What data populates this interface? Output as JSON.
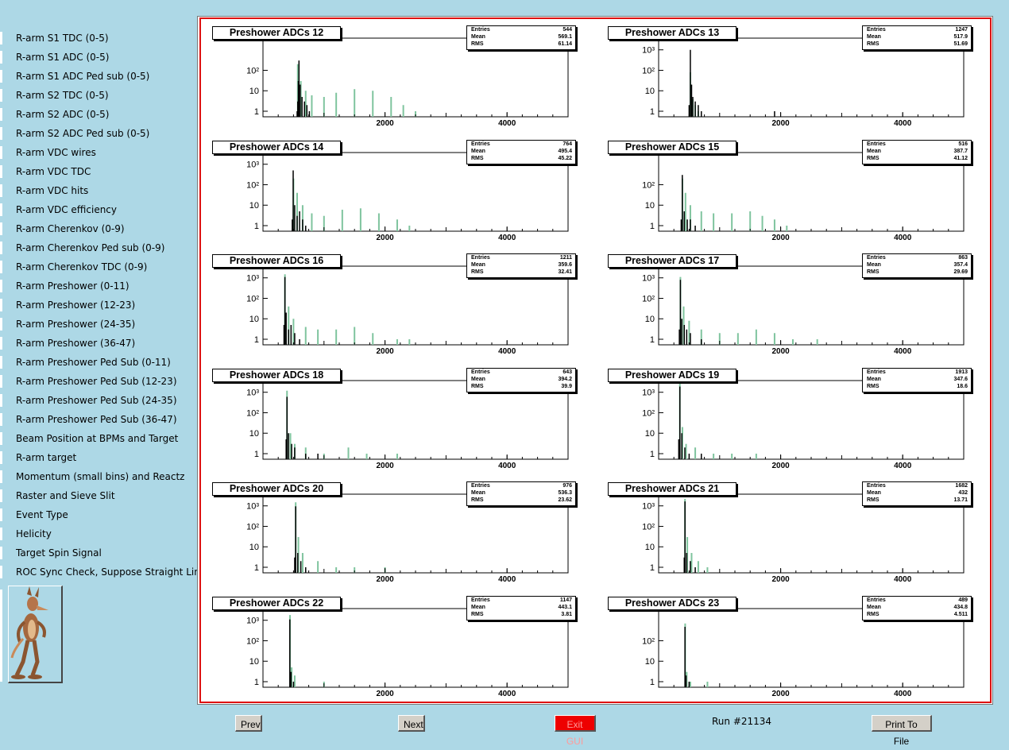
{
  "sidebar": {
    "items": [
      {
        "label": "R-arm S1 TDC (0-5)"
      },
      {
        "label": "R-arm S1 ADC (0-5)"
      },
      {
        "label": "R-arm S1 ADC Ped sub (0-5)"
      },
      {
        "label": "R-arm S2 TDC (0-5)"
      },
      {
        "label": "R-arm S2 ADC (0-5)"
      },
      {
        "label": "R-arm S2 ADC Ped sub (0-5)"
      },
      {
        "label": "R-arm VDC wires"
      },
      {
        "label": "R-arm VDC TDC"
      },
      {
        "label": "R-arm VDC hits"
      },
      {
        "label": "R-arm VDC efficiency"
      },
      {
        "label": "R-arm Cherenkov (0-9)"
      },
      {
        "label": "R-arm Cherenkov Ped sub (0-9)"
      },
      {
        "label": "R-arm Cherenkov TDC (0-9)"
      },
      {
        "label": "R-arm Preshower (0-11)"
      },
      {
        "label": "R-arm Preshower (12-23)"
      },
      {
        "label": "R-arm Preshower (24-35)"
      },
      {
        "label": "R-arm Preshower (36-47)"
      },
      {
        "label": "R-arm Preshower Ped Sub (0-11)"
      },
      {
        "label": "R-arm Preshower Ped Sub (12-23)"
      },
      {
        "label": "R-arm Preshower Ped Sub (24-35)"
      },
      {
        "label": "R-arm Preshower Ped Sub (36-47)"
      },
      {
        "label": "Beam Position at BPMs and Target"
      },
      {
        "label": "R-arm target"
      },
      {
        "label": "Momentum (small bins) and Reactz"
      },
      {
        "label": "Raster and Sieve Slit"
      },
      {
        "label": "Event Type"
      },
      {
        "label": "Helicity"
      },
      {
        "label": "Target Spin Signal"
      },
      {
        "label": "ROC Sync Check, Suppose Straight Lines"
      }
    ],
    "logo_icon": "wile-e-coyote-logo"
  },
  "stat_keys": {
    "entries": "Entries",
    "mean": "Mean",
    "rms": "RMS"
  },
  "colors": {
    "green": "#7fc49e",
    "black": "#000000",
    "frame": "#dd1111",
    "exit": "#ee0000"
  },
  "chart_data": [
    {
      "type": "bar",
      "title": "Preshower ADCs 12",
      "entries": "544",
      "mean": "569.1",
      "rms": "61.14",
      "y_scale": "log",
      "y_ticks": [
        "1",
        "10",
        "10²"
      ],
      "x_ticks": [
        "2000",
        "4000"
      ],
      "xlim": [
        0,
        5000
      ],
      "series": [
        {
          "color": "green",
          "values": [
            [
              570,
              200
            ],
            [
              620,
              30
            ],
            [
              700,
              10
            ],
            [
              800,
              6
            ],
            [
              1000,
              5
            ],
            [
              1200,
              8
            ],
            [
              1500,
              12
            ],
            [
              1800,
              10
            ],
            [
              2100,
              5
            ],
            [
              2300,
              2
            ],
            [
              2500,
              1
            ]
          ]
        },
        {
          "color": "black",
          "values": [
            [
              560,
              1
            ],
            [
              570,
              3
            ],
            [
              580,
              30
            ],
            [
              590,
              300
            ],
            [
              610,
              20
            ],
            [
              640,
              5
            ],
            [
              680,
              3
            ],
            [
              720,
              2
            ],
            [
              760,
              1
            ]
          ]
        }
      ]
    },
    {
      "type": "bar",
      "title": "Preshower ADCs 13",
      "entries": "1247",
      "mean": "517.9",
      "rms": "51.69",
      "y_scale": "log",
      "y_ticks": [
        "1",
        "10",
        "10²",
        "10³"
      ],
      "x_ticks": [
        "2000",
        "4000"
      ],
      "xlim": [
        0,
        5000
      ],
      "series": [
        {
          "color": "green",
          "values": [
            [
              520,
              80
            ],
            [
              560,
              4
            ],
            [
              600,
              2
            ],
            [
              650,
              1
            ]
          ]
        },
        {
          "color": "black",
          "values": [
            [
              500,
              2
            ],
            [
              520,
              1000
            ],
            [
              540,
              20
            ],
            [
              560,
              5
            ],
            [
              600,
              3
            ],
            [
              650,
              2
            ],
            [
              700,
              1
            ],
            [
              1900,
              1
            ]
          ]
        }
      ]
    },
    {
      "type": "bar",
      "title": "Preshower ADCs 14",
      "entries": "764",
      "mean": "495.4",
      "rms": "45.22",
      "y_scale": "log",
      "y_ticks": [
        "1",
        "10",
        "10²",
        "10³"
      ],
      "x_ticks": [
        "2000",
        "4000"
      ],
      "xlim": [
        0,
        5000
      ],
      "series": [
        {
          "color": "green",
          "values": [
            [
              500,
              200
            ],
            [
              560,
              40
            ],
            [
              650,
              10
            ],
            [
              800,
              4
            ],
            [
              1000,
              3
            ],
            [
              1300,
              6
            ],
            [
              1600,
              7
            ],
            [
              1900,
              4
            ],
            [
              2200,
              2
            ],
            [
              2400,
              1
            ]
          ]
        },
        {
          "color": "black",
          "values": [
            [
              480,
              2
            ],
            [
              495,
              500
            ],
            [
              520,
              10
            ],
            [
              560,
              3
            ],
            [
              600,
              5
            ],
            [
              650,
              2
            ],
            [
              700,
              1
            ]
          ]
        }
      ]
    },
    {
      "type": "bar",
      "title": "Preshower ADCs 15",
      "entries": "516",
      "mean": "387.7",
      "rms": "41.12",
      "y_scale": "log",
      "y_ticks": [
        "1",
        "10",
        "10²"
      ],
      "x_ticks": [
        "2000",
        "4000"
      ],
      "xlim": [
        0,
        5000
      ],
      "series": [
        {
          "color": "green",
          "values": [
            [
              390,
              200
            ],
            [
              440,
              40
            ],
            [
              520,
              10
            ],
            [
              700,
              5
            ],
            [
              900,
              4
            ],
            [
              1200,
              4
            ],
            [
              1500,
              5
            ],
            [
              1700,
              3
            ],
            [
              1900,
              2
            ],
            [
              2100,
              1
            ]
          ]
        },
        {
          "color": "black",
          "values": [
            [
              370,
              2
            ],
            [
              388,
              300
            ],
            [
              420,
              5
            ],
            [
              470,
              2
            ],
            [
              520,
              2
            ],
            [
              600,
              1
            ]
          ]
        }
      ]
    },
    {
      "type": "bar",
      "title": "Preshower ADCs 16",
      "entries": "1211",
      "mean": "359.6",
      "rms": "32.41",
      "y_scale": "log",
      "y_ticks": [
        "1",
        "10",
        "10²",
        "10³"
      ],
      "x_ticks": [
        "2000",
        "4000"
      ],
      "xlim": [
        0,
        5000
      ],
      "series": [
        {
          "color": "green",
          "values": [
            [
              360,
              1500
            ],
            [
              420,
              40
            ],
            [
              500,
              10
            ],
            [
              700,
              4
            ],
            [
              900,
              3
            ],
            [
              1200,
              3
            ],
            [
              1500,
              4
            ],
            [
              1800,
              2
            ],
            [
              2200,
              1
            ],
            [
              2400,
              1
            ]
          ]
        },
        {
          "color": "black",
          "values": [
            [
              345,
              5
            ],
            [
              360,
              1100
            ],
            [
              380,
              20
            ],
            [
              420,
              3
            ],
            [
              460,
              5
            ],
            [
              520,
              2
            ],
            [
              600,
              1
            ]
          ]
        }
      ]
    },
    {
      "type": "bar",
      "title": "Preshower ADCs 17",
      "entries": "863",
      "mean": "357.4",
      "rms": "29.69",
      "y_scale": "log",
      "y_ticks": [
        "1",
        "10",
        "10²",
        "10³"
      ],
      "x_ticks": [
        "2000",
        "4000"
      ],
      "xlim": [
        0,
        5000
      ],
      "series": [
        {
          "color": "green",
          "values": [
            [
              357,
              1100
            ],
            [
              410,
              40
            ],
            [
              500,
              8
            ],
            [
              700,
              3
            ],
            [
              1000,
              2
            ],
            [
              1300,
              2
            ],
            [
              1600,
              3
            ],
            [
              1900,
              2
            ],
            [
              2200,
              1
            ],
            [
              2600,
              1
            ]
          ]
        },
        {
          "color": "black",
          "values": [
            [
              340,
              3
            ],
            [
              357,
              800
            ],
            [
              380,
              10
            ],
            [
              420,
              5
            ],
            [
              460,
              3
            ],
            [
              520,
              2
            ],
            [
              700,
              1
            ]
          ]
        }
      ]
    },
    {
      "type": "bar",
      "title": "Preshower ADCs 18",
      "entries": "643",
      "mean": "394.2",
      "rms": "39.9",
      "y_scale": "log",
      "y_ticks": [
        "1",
        "10",
        "10²",
        "10³"
      ],
      "x_ticks": [
        "2000",
        "4000"
      ],
      "xlim": [
        0,
        5000
      ],
      "series": [
        {
          "color": "green",
          "values": [
            [
              394,
              1200
            ],
            [
              450,
              10
            ],
            [
              520,
              3
            ],
            [
              700,
              2
            ],
            [
              1000,
              1
            ],
            [
              1400,
              2
            ],
            [
              1700,
              1
            ],
            [
              2200,
              1
            ]
          ]
        },
        {
          "color": "black",
          "values": [
            [
              380,
              5
            ],
            [
              394,
              600
            ],
            [
              420,
              10
            ],
            [
              470,
              3
            ],
            [
              520,
              2
            ],
            [
              700,
              1
            ],
            [
              900,
              1
            ]
          ]
        }
      ]
    },
    {
      "type": "bar",
      "title": "Preshower ADCs 19",
      "entries": "1913",
      "mean": "347.6",
      "rms": "18.6",
      "y_scale": "log",
      "y_ticks": [
        "1",
        "10",
        "10²",
        "10³"
      ],
      "x_ticks": [
        "2000",
        "4000"
      ],
      "xlim": [
        0,
        5000
      ],
      "series": [
        {
          "color": "green",
          "values": [
            [
              348,
              3500
            ],
            [
              390,
              20
            ],
            [
              450,
              3
            ],
            [
              600,
              2
            ],
            [
              900,
              1
            ],
            [
              1200,
              1
            ],
            [
              1600,
              1
            ]
          ]
        },
        {
          "color": "black",
          "values": [
            [
              330,
              5
            ],
            [
              348,
              1900
            ],
            [
              380,
              10
            ],
            [
              430,
              2
            ],
            [
              500,
              1
            ],
            [
              700,
              1
            ]
          ]
        }
      ]
    },
    {
      "type": "bar",
      "title": "Preshower ADCs 20",
      "entries": "976",
      "mean": "536.3",
      "rms": "23.62",
      "y_scale": "log",
      "y_ticks": [
        "1",
        "10",
        "10²",
        "10³"
      ],
      "x_ticks": [
        "2000",
        "4000"
      ],
      "xlim": [
        0,
        5000
      ],
      "series": [
        {
          "color": "green",
          "values": [
            [
              536,
              1500
            ],
            [
              580,
              30
            ],
            [
              650,
              5
            ],
            [
              900,
              2
            ],
            [
              1200,
              1
            ],
            [
              1500,
              1
            ],
            [
              2000,
              1
            ]
          ]
        },
        {
          "color": "black",
          "values": [
            [
              520,
              3
            ],
            [
              536,
              950
            ],
            [
              570,
              5
            ],
            [
              620,
              2
            ],
            [
              700,
              1
            ]
          ]
        }
      ]
    },
    {
      "type": "bar",
      "title": "Preshower ADCs 21",
      "entries": "1682",
      "mean": "432",
      "rms": "13.71",
      "y_scale": "log",
      "y_ticks": [
        "1",
        "10",
        "10²",
        "10³"
      ],
      "x_ticks": [
        "2000",
        "4000"
      ],
      "xlim": [
        0,
        5000
      ],
      "series": [
        {
          "color": "green",
          "values": [
            [
              432,
              2200
            ],
            [
              470,
              30
            ],
            [
              540,
              5
            ],
            [
              650,
              2
            ],
            [
              800,
              1
            ]
          ]
        },
        {
          "color": "black",
          "values": [
            [
              420,
              3
            ],
            [
              432,
              1650
            ],
            [
              460,
              5
            ],
            [
              520,
              2
            ],
            [
              600,
              1
            ]
          ]
        }
      ]
    },
    {
      "type": "bar",
      "title": "Preshower ADCs 22",
      "entries": "1147",
      "mean": "443.1",
      "rms": "3.81",
      "y_scale": "log",
      "y_ticks": [
        "1",
        "10",
        "10²",
        "10³"
      ],
      "x_ticks": [
        "2000",
        "4000"
      ],
      "xlim": [
        0,
        5000
      ],
      "series": [
        {
          "color": "green",
          "values": [
            [
              443,
              1800
            ],
            [
              470,
              5
            ],
            [
              520,
              2
            ],
            [
              1000,
              1
            ]
          ]
        },
        {
          "color": "black",
          "values": [
            [
              440,
              1100
            ],
            [
              460,
              3
            ],
            [
              500,
              1
            ]
          ]
        }
      ]
    },
    {
      "type": "bar",
      "title": "Preshower ADCs 23",
      "entries": "489",
      "mean": "434.8",
      "rms": "4.511",
      "y_scale": "log",
      "y_ticks": [
        "1",
        "10",
        "10²"
      ],
      "x_ticks": [
        "2000",
        "4000"
      ],
      "xlim": [
        0,
        5000
      ],
      "series": [
        {
          "color": "green",
          "values": [
            [
              435,
              700
            ],
            [
              460,
              3
            ],
            [
              520,
              1
            ],
            [
              800,
              1
            ]
          ]
        },
        {
          "color": "black",
          "values": [
            [
              432,
              480
            ],
            [
              450,
              2
            ],
            [
              500,
              1
            ]
          ]
        }
      ]
    }
  ],
  "footer": {
    "prev": "Prev",
    "next": "Next",
    "exit": "Exit GUI",
    "run": "Run #21134",
    "print": "Print To File"
  }
}
